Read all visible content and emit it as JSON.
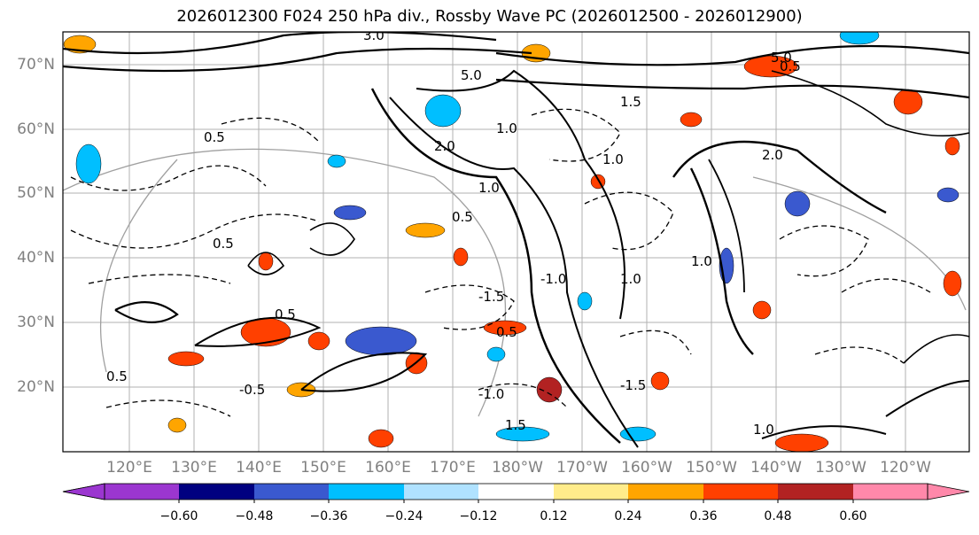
{
  "title": "2026012300 F024 250 hPa div., Rossby Wave PC (2026012500 - 2026012900)",
  "lat_labels": [
    "70°N",
    "60°N",
    "50°N",
    "40°N",
    "30°N",
    "20°N"
  ],
  "lon_labels": [
    "120°E",
    "130°E",
    "140°E",
    "150°E",
    "160°E",
    "170°E",
    "180°W",
    "170°W",
    "160°W",
    "150°W",
    "140°W",
    "130°W",
    "120°W"
  ],
  "colorbar": {
    "ticks": [
      "−0.60",
      "−0.48",
      "−0.36",
      "−0.24",
      "−0.12",
      "0.12",
      "0.24",
      "0.36",
      "0.48",
      "0.60"
    ],
    "colors": [
      "#9b36d0",
      "#000080",
      "#3a59cf",
      "#00bfff",
      "#b0e2ff",
      "#ffffff",
      "#ffec8b",
      "#ffa500",
      "#ff4000",
      "#b22222",
      "#ff88aa"
    ]
  },
  "contour_labels": [
    "5.0",
    "1.0",
    "0.5",
    "2.0",
    "1.5",
    "3.0",
    "0.5",
    "1.0",
    "-0.5",
    "-1.0",
    "-1.5",
    "0.5",
    "1.0",
    "2.0",
    "1.0",
    "0.5",
    "1.5",
    "-1.0",
    "1.0",
    "0.5",
    "-1.5",
    "0.5",
    "1.0",
    "0.5",
    "5.0"
  ]
}
